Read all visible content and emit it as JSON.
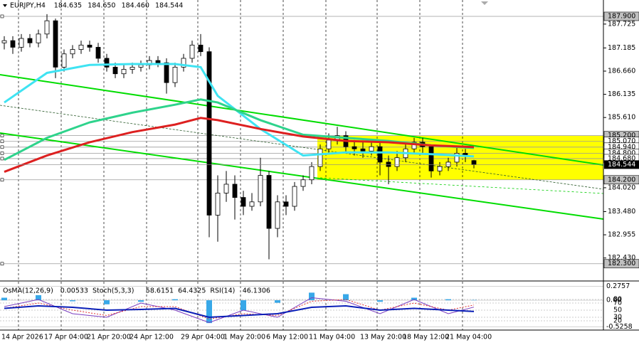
{
  "chart_data": [
    {
      "type": "candlestick",
      "title": "EURJPY,H4",
      "header_labels": [
        "184.635",
        "184.650",
        "184.460",
        "184.544"
      ],
      "categories": [
        "14 Apr 2026",
        null,
        null,
        null,
        null,
        "17 Apr 04:00",
        null,
        null,
        null,
        null,
        "21 Apr 20:00",
        null,
        null,
        null,
        null,
        "24 Apr 12:00",
        null,
        null,
        null,
        null,
        null,
        "29 Apr 04:00",
        null,
        null,
        null,
        null,
        "1 May 20:00",
        null,
        null,
        null,
        null,
        "6 May 12:00",
        null,
        null,
        null,
        null,
        "11 May 04:00",
        null,
        null,
        null,
        null,
        null,
        "13 May 20:00",
        null,
        null,
        null,
        null,
        "18 May 12:00",
        null,
        null,
        null,
        null,
        "21 May 04:00",
        null,
        null,
        null
      ],
      "open": [
        187.3,
        187.35,
        187.2,
        187.4,
        187.3,
        187.5,
        187.8,
        186.75,
        187.05,
        187.15,
        187.25,
        187.2,
        186.95,
        186.75,
        186.6,
        186.7,
        186.75,
        186.8,
        186.9,
        186.85,
        186.4,
        186.75,
        186.95,
        187.25,
        187.1,
        183.4,
        183.9,
        184.1,
        183.8,
        183.6,
        183.7,
        184.3,
        183.1,
        183.7,
        183.6,
        184.05,
        184.2,
        184.5,
        184.9,
        185.1,
        185.2,
        184.95,
        184.9,
        184.85,
        184.95,
        184.6,
        184.5,
        184.7,
        184.9,
        185.05,
        184.95,
        184.4,
        184.5,
        184.6,
        184.8,
        184.635
      ],
      "high": [
        187.45,
        187.45,
        187.5,
        187.5,
        187.6,
        187.95,
        187.85,
        187.15,
        187.25,
        187.35,
        187.35,
        187.3,
        187.05,
        186.85,
        186.8,
        186.85,
        186.9,
        187.0,
        187.0,
        186.95,
        186.85,
        187.05,
        187.35,
        187.5,
        187.2,
        184.3,
        184.4,
        184.3,
        183.95,
        183.9,
        184.7,
        184.4,
        183.85,
        183.85,
        184.15,
        184.3,
        184.6,
        185.0,
        185.25,
        185.4,
        185.3,
        185.1,
        185.05,
        185.05,
        185.05,
        184.75,
        184.85,
        185.0,
        185.15,
        185.15,
        185.0,
        184.6,
        184.7,
        184.95,
        184.9,
        184.65
      ],
      "low": [
        187.15,
        187.05,
        187.1,
        187.2,
        187.2,
        187.4,
        186.5,
        186.65,
        186.95,
        187.05,
        187.1,
        186.85,
        186.65,
        186.5,
        186.5,
        186.6,
        186.65,
        186.7,
        186.75,
        186.15,
        186.3,
        186.65,
        186.85,
        187.0,
        182.9,
        182.8,
        183.7,
        183.3,
        183.4,
        183.5,
        183.6,
        182.4,
        182.9,
        183.4,
        183.5,
        183.95,
        184.1,
        184.4,
        184.8,
        185.0,
        184.8,
        184.75,
        184.7,
        184.75,
        184.3,
        184.1,
        184.4,
        184.6,
        184.8,
        184.8,
        184.25,
        184.3,
        184.4,
        184.5,
        184.6,
        184.46
      ],
      "close": [
        187.35,
        187.2,
        187.4,
        187.3,
        187.5,
        187.8,
        186.75,
        187.05,
        187.15,
        187.25,
        187.2,
        186.95,
        186.75,
        186.6,
        186.7,
        186.75,
        186.8,
        186.9,
        186.85,
        186.4,
        186.75,
        186.95,
        187.25,
        187.1,
        183.4,
        183.9,
        184.1,
        183.8,
        183.6,
        183.7,
        184.3,
        183.1,
        183.7,
        183.6,
        184.05,
        184.2,
        184.5,
        184.9,
        185.1,
        185.2,
        184.95,
        184.9,
        184.85,
        184.95,
        184.6,
        184.5,
        184.7,
        184.9,
        185.05,
        184.95,
        184.4,
        184.5,
        184.6,
        184.8,
        184.75,
        184.544
      ],
      "moving_averages": [
        {
          "color": "#3fe3f2",
          "x": [
            0,
            5,
            10,
            15,
            20,
            23,
            25,
            30,
            35,
            40,
            45,
            50,
            55
          ],
          "values": [
            185.95,
            186.62,
            186.8,
            186.82,
            186.82,
            186.75,
            186.1,
            185.35,
            184.75,
            184.82,
            184.82,
            184.78,
            184.73
          ]
        },
        {
          "color": "#2ed38c",
          "x": [
            0,
            5,
            10,
            15,
            20,
            23,
            25,
            30,
            35,
            40,
            45,
            50,
            55
          ],
          "values": [
            184.65,
            185.15,
            185.5,
            185.72,
            185.9,
            186.02,
            185.95,
            185.55,
            185.22,
            185.15,
            185.08,
            184.98,
            184.92
          ]
        },
        {
          "color": "#dd2020",
          "x": [
            0,
            5,
            10,
            15,
            20,
            23,
            25,
            30,
            35,
            40,
            45,
            50,
            55
          ],
          "values": [
            184.38,
            184.75,
            185.05,
            185.28,
            185.45,
            185.6,
            185.55,
            185.35,
            185.18,
            185.08,
            185.05,
            184.98,
            184.94
          ]
        }
      ],
      "ylim": [
        181.99,
        188.27
      ],
      "yticks": [
        {
          "value": 187.725,
          "label": "187.725"
        },
        {
          "value": 187.185,
          "label": "187.185"
        },
        {
          "value": 186.66,
          "label": "186.660"
        },
        {
          "value": 186.135,
          "label": "186.135"
        },
        {
          "value": 185.61,
          "label": "185.610"
        },
        {
          "value": 184.02,
          "label": "184.020"
        },
        {
          "value": 183.48,
          "label": "183.480"
        },
        {
          "value": 182.955,
          "label": "182.955"
        },
        {
          "value": 182.43,
          "label": "182.430"
        }
      ],
      "levels": [
        {
          "value": 187.9,
          "label": "187.900",
          "color": "#c0c0c0"
        },
        {
          "value": 185.2,
          "label": "185.200",
          "color": "#c0c0c0"
        },
        {
          "value": 185.07,
          "label": "185.070",
          "color": "#ffffff"
        },
        {
          "value": 184.94,
          "label": "184.940",
          "color": "#ffffff"
        },
        {
          "value": 184.8,
          "label": "184.800",
          "color": "#ffffff"
        },
        {
          "value": 184.68,
          "label": "184.680",
          "color": "#ffffff"
        },
        {
          "value": 184.2,
          "label": "184.200",
          "color": "#c0c0c0"
        },
        {
          "value": 182.3,
          "label": "182.300",
          "color": "#c0c0c0"
        }
      ],
      "last_price": {
        "value": 184.544,
        "label": "184.544"
      },
      "zone_color": "#ffff00",
      "grid": true
    },
    {
      "type": "oscillator",
      "x": [
        0,
        4,
        8,
        12,
        16,
        20,
        24,
        28,
        32,
        36,
        40,
        44,
        48,
        52,
        55
      ],
      "ylim": [
        -0.56,
        0.31
      ],
      "yticks": [
        0.2757,
        {
          "value": 0,
          "label": "0.00"
        },
        -0.5258
      ],
      "y2lim": [
        -2,
        122
      ],
      "y2ticks": [
        80,
        70,
        50,
        30,
        20
      ],
      "series": [
        {
          "name": "OsMA(12,26,9)",
          "color": "#38a8e8",
          "values": [
            0.05,
            0.1,
            -0.02,
            -0.08,
            -0.03,
            0.02,
            -0.45,
            -0.2,
            -0.05,
            0.15,
            0.12,
            -0.03,
            0.05,
            0.02,
            0.00533
          ]
        },
        {
          "name": "Stoch(5,3,3)",
          "color": "#7a3cc0",
          "axis": "y2",
          "values": [
            60,
            80,
            40,
            30,
            70,
            50,
            15,
            50,
            30,
            85,
            75,
            40,
            80,
            40,
            58.6151
          ],
          "signal": {
            "color": "#e03030",
            "values": [
              55,
              70,
              50,
              35,
              60,
              60,
              25,
              40,
              35,
              75,
              80,
              50,
              70,
              50,
              64.4325
            ]
          }
        },
        {
          "name": "RSI(14)",
          "color": "#0a1fb8",
          "axis": "y2",
          "values": [
            55,
            62,
            58,
            50,
            52,
            55,
            30,
            35,
            40,
            58,
            62,
            50,
            55,
            50,
            46.1306
          ]
        }
      ]
    }
  ]
}
